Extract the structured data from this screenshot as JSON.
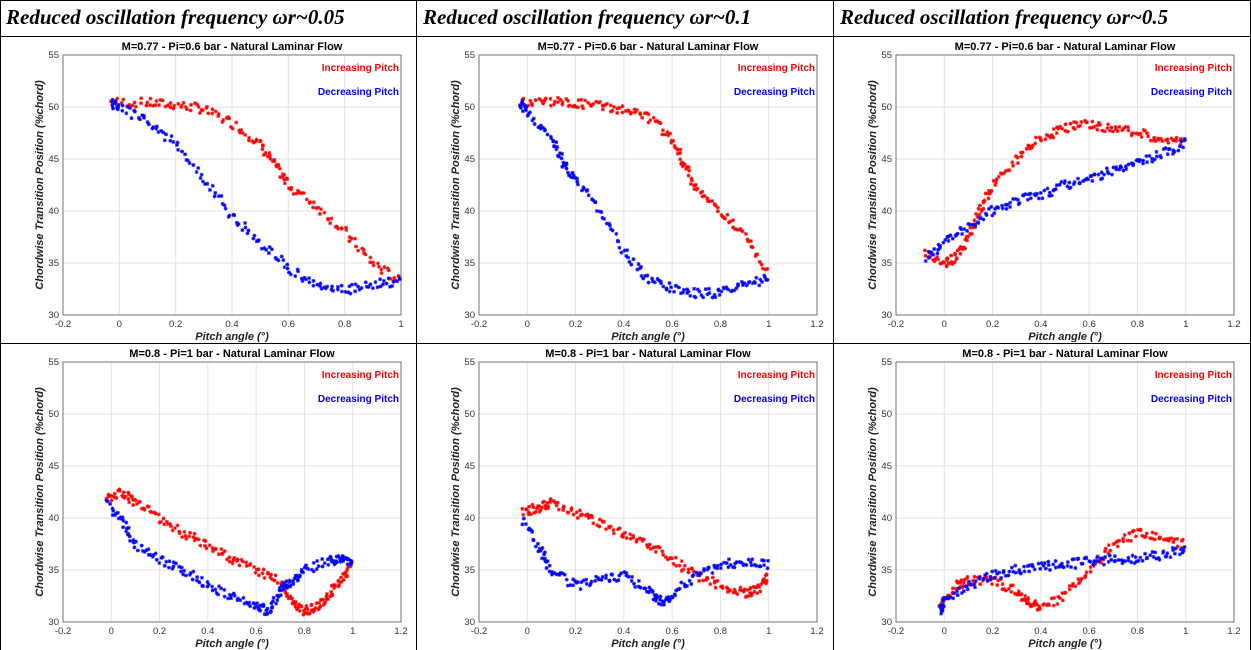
{
  "headers": [
    "Reduced oscillation frequency ωr~0.05",
    "Reduced oscillation frequency ωr~0.1",
    "Reduced oscillation frequency ωr~0.5"
  ],
  "colors": {
    "increasing": "#ff0000",
    "decreasing": "#0000ff",
    "grid": "#e3e3e3"
  },
  "chart_data": [
    {
      "type": "scatter",
      "title": "M=0.77 -  Pi=0.6 bar -  Natural Laminar Flow",
      "xlabel": "Pitch angle (°)",
      "ylabel": "Chordwise Transition Position (%chord)",
      "xlim": [
        -0.2,
        1.0
      ],
      "ylim": [
        30,
        55
      ],
      "xticks": [
        "-0.2",
        "0",
        "0.2",
        "0.4",
        "0.6",
        "0.8",
        "1"
      ],
      "yticks": [
        "30",
        "35",
        "40",
        "45",
        "50",
        "55"
      ],
      "grid": true,
      "legend": "top-right",
      "series": [
        {
          "name": "Increasing Pitch",
          "color": "#ff0000",
          "x": [
            -0.03,
            0.1,
            0.2,
            0.3,
            0.4,
            0.5,
            0.55,
            0.6,
            0.7,
            0.8,
            0.9,
            1.0
          ],
          "y": [
            50.5,
            50.4,
            50.2,
            49.8,
            48.5,
            46.5,
            44.5,
            42.5,
            40.5,
            38.0,
            35.0,
            33.2
          ]
        },
        {
          "name": "Decreasing Pitch",
          "color": "#0000ff",
          "x": [
            1.0,
            0.9,
            0.8,
            0.7,
            0.6,
            0.5,
            0.4,
            0.3,
            0.2,
            0.1,
            0.0,
            -0.03
          ],
          "y": [
            33.2,
            33.0,
            32.3,
            32.8,
            34.5,
            37.0,
            39.5,
            43.0,
            46.5,
            48.5,
            50.0,
            50.4
          ]
        }
      ]
    },
    {
      "type": "scatter",
      "title": "M=0.77 -  Pi=0.6 bar -  Natural Laminar Flow",
      "xlabel": "Pitch angle (°)",
      "ylabel": "Chordwise Transition Position (%chord)",
      "xlim": [
        -0.2,
        1.2
      ],
      "ylim": [
        30,
        55
      ],
      "xticks": [
        "-0.2",
        "0",
        "0.2",
        "0.4",
        "0.6",
        "0.8",
        "1",
        "1.2"
      ],
      "yticks": [
        "30",
        "35",
        "40",
        "45",
        "50",
        "55"
      ],
      "grid": true,
      "legend": "top-right",
      "series": [
        {
          "name": "Increasing Pitch",
          "color": "#ff0000",
          "x": [
            -0.03,
            0.1,
            0.2,
            0.3,
            0.4,
            0.5,
            0.6,
            0.65,
            0.7,
            0.8,
            0.9,
            1.0
          ],
          "y": [
            50.5,
            50.5,
            50.3,
            50.1,
            49.7,
            49.0,
            47.0,
            44.5,
            42.0,
            40.0,
            37.5,
            34.0
          ]
        },
        {
          "name": "Decreasing Pitch",
          "color": "#0000ff",
          "x": [
            1.0,
            0.9,
            0.8,
            0.7,
            0.6,
            0.5,
            0.4,
            0.3,
            0.2,
            0.15,
            0.1,
            0.0,
            -0.03
          ],
          "y": [
            33.5,
            33.0,
            32.2,
            32.0,
            32.5,
            33.5,
            36.0,
            40.0,
            43.0,
            44.5,
            47.0,
            49.5,
            50.4
          ]
        }
      ]
    },
    {
      "type": "scatter",
      "title": "M=0.77 -  Pi=0.6 bar -  Natural Laminar Flow",
      "xlabel": "Pitch angle (°)",
      "ylabel": "Chordwise Transition Position (%chord)",
      "xlim": [
        -0.2,
        1.2
      ],
      "ylim": [
        30,
        55
      ],
      "xticks": [
        "-0.2",
        "0",
        "0.2",
        "0.4",
        "0.6",
        "0.8",
        "1",
        "1.2"
      ],
      "yticks": [
        "30",
        "35",
        "40",
        "45",
        "50",
        "55"
      ],
      "grid": true,
      "legend": "top-right",
      "series": [
        {
          "name": "Increasing Pitch",
          "color": "#ff0000",
          "x": [
            -0.08,
            0.0,
            0.05,
            0.1,
            0.15,
            0.2,
            0.3,
            0.4,
            0.5,
            0.6,
            0.7,
            0.8,
            0.9,
            1.0
          ],
          "y": [
            36.0,
            35.0,
            35.5,
            37.5,
            40.0,
            42.5,
            45.0,
            47.0,
            48.0,
            48.3,
            48.0,
            47.5,
            47.0,
            46.5
          ]
        },
        {
          "name": "Decreasing Pitch",
          "color": "#0000ff",
          "x": [
            1.0,
            0.9,
            0.8,
            0.7,
            0.6,
            0.5,
            0.4,
            0.3,
            0.2,
            0.1,
            0.0,
            -0.08
          ],
          "y": [
            46.5,
            45.5,
            44.5,
            44.0,
            43.0,
            42.5,
            41.5,
            41.0,
            40.0,
            38.5,
            37.0,
            35.5
          ]
        }
      ]
    },
    {
      "type": "scatter",
      "title": "M=0.8 -  Pi=1 bar -  Natural Laminar Flow",
      "xlabel": "Pitch angle (°)",
      "ylabel": "Chordwise Transition Position (%chord)",
      "xlim": [
        -0.2,
        1.2
      ],
      "ylim": [
        30,
        55
      ],
      "xticks": [
        "-0.2",
        "0",
        "0.2",
        "0.4",
        "0.6",
        "0.8",
        "1",
        "1.2"
      ],
      "yticks": [
        "30",
        "35",
        "40",
        "45",
        "50",
        "55"
      ],
      "grid": true,
      "legend": "top-right",
      "series": [
        {
          "name": "Increasing Pitch",
          "color": "#ff0000",
          "x": [
            -0.02,
            0.05,
            0.1,
            0.2,
            0.3,
            0.4,
            0.5,
            0.6,
            0.7,
            0.75,
            0.8,
            0.85,
            0.9,
            0.95,
            1.0
          ],
          "y": [
            42.0,
            42.5,
            41.5,
            40.0,
            38.5,
            37.5,
            36.0,
            35.0,
            34.0,
            32.0,
            31.0,
            31.5,
            32.5,
            34.0,
            35.5
          ]
        },
        {
          "name": "Decreasing Pitch",
          "color": "#0000ff",
          "x": [
            1.0,
            0.95,
            0.9,
            0.8,
            0.75,
            0.7,
            0.65,
            0.6,
            0.5,
            0.4,
            0.3,
            0.2,
            0.1,
            0.05,
            -0.02
          ],
          "y": [
            35.8,
            36.0,
            35.8,
            35.0,
            34.0,
            33.0,
            31.0,
            31.5,
            32.5,
            33.5,
            35.0,
            36.0,
            37.5,
            39.5,
            41.5
          ]
        }
      ]
    },
    {
      "type": "scatter",
      "title": "M=0.8 -  Pi=1 bar -  Natural Laminar Flow",
      "xlabel": "Pitch angle (°)",
      "ylabel": "Chordwise Transition Position (%chord)",
      "xlim": [
        -0.2,
        1.2
      ],
      "ylim": [
        30,
        55
      ],
      "xticks": [
        "-0.2",
        "0",
        "0.2",
        "0.4",
        "0.6",
        "0.8",
        "1",
        "1.2"
      ],
      "yticks": [
        "30",
        "35",
        "40",
        "45",
        "50",
        "55"
      ],
      "grid": true,
      "legend": "top-right",
      "series": [
        {
          "name": "Increasing Pitch",
          "color": "#ff0000",
          "x": [
            -0.02,
            0.05,
            0.1,
            0.2,
            0.3,
            0.4,
            0.5,
            0.6,
            0.7,
            0.8,
            0.9,
            0.95,
            1.0
          ],
          "y": [
            40.5,
            41.0,
            41.5,
            40.5,
            39.5,
            38.5,
            37.5,
            36.0,
            34.5,
            33.5,
            32.8,
            33.0,
            34.5
          ]
        },
        {
          "name": "Decreasing Pitch",
          "color": "#0000ff",
          "x": [
            1.0,
            0.9,
            0.8,
            0.7,
            0.6,
            0.55,
            0.5,
            0.4,
            0.3,
            0.2,
            0.1,
            0.05,
            -0.02
          ],
          "y": [
            35.5,
            35.8,
            35.5,
            34.5,
            32.5,
            32.0,
            33.0,
            34.5,
            34.0,
            33.5,
            35.0,
            37.0,
            40.0
          ]
        }
      ]
    },
    {
      "type": "scatter",
      "title": "M=0.8 -  Pi=1 bar -  Natural Laminar Flow",
      "xlabel": "Pitch angle (°)",
      "ylabel": "Chordwise Transition Position (%chord)",
      "xlim": [
        -0.2,
        1.2
      ],
      "ylim": [
        30,
        55
      ],
      "xticks": [
        "-0.2",
        "0",
        "0.2",
        "0.4",
        "0.6",
        "0.8",
        "1",
        "1.2"
      ],
      "yticks": [
        "30",
        "35",
        "40",
        "45",
        "50",
        "55"
      ],
      "grid": true,
      "legend": "top-right",
      "series": [
        {
          "name": "Increasing Pitch",
          "color": "#ff0000",
          "x": [
            -0.02,
            0.05,
            0.1,
            0.2,
            0.3,
            0.35,
            0.4,
            0.5,
            0.6,
            0.7,
            0.8,
            0.9,
            1.0
          ],
          "y": [
            31.5,
            33.5,
            34.0,
            34.0,
            33.0,
            32.0,
            31.5,
            32.5,
            35.0,
            37.5,
            38.5,
            38.0,
            37.5
          ]
        },
        {
          "name": "Decreasing Pitch",
          "color": "#0000ff",
          "x": [
            1.0,
            0.9,
            0.8,
            0.7,
            0.6,
            0.5,
            0.4,
            0.3,
            0.2,
            0.1,
            0.0,
            -0.02
          ],
          "y": [
            37.0,
            36.5,
            36.0,
            36.0,
            35.8,
            35.5,
            35.3,
            35.0,
            34.5,
            33.5,
            32.0,
            31.0
          ]
        }
      ]
    }
  ]
}
